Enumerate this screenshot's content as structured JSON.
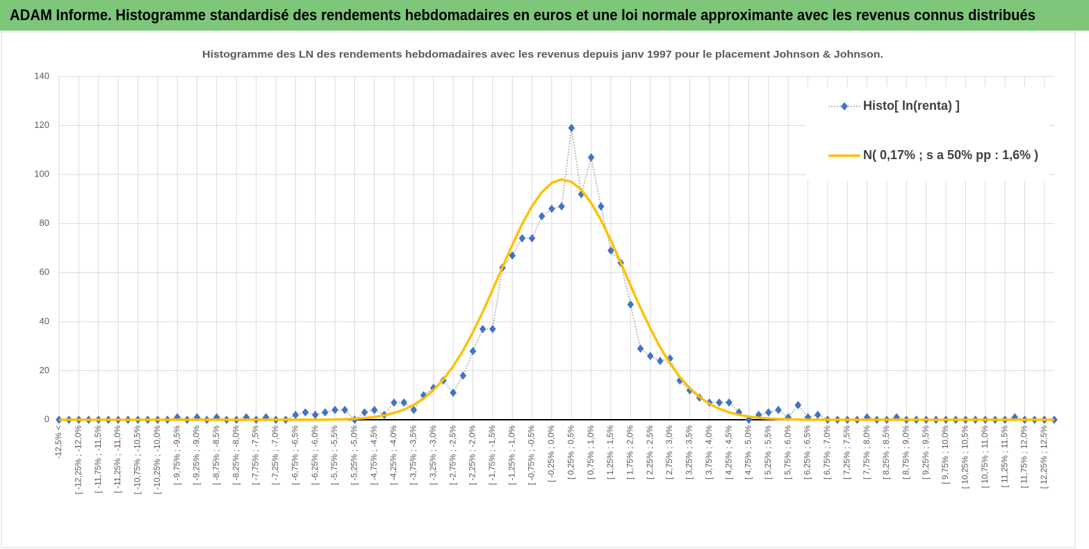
{
  "header": {
    "title": "ADAM Informe. Histogramme standardisé des rendements hebdomadaires en euros et une loi normale approximante avec les revenus connus distribués"
  },
  "chart_data": {
    "type": "line",
    "title": "Histogramme  des LN des rendements hebdomadaires avec les revenus depuis janv 1997 pour le placement Johnson & Johnson.",
    "categories": [
      "-12,5% <",
      null,
      "[ -12,25% ; -12,0%",
      null,
      "[ -11,75% ; -11,5%",
      null,
      "[ -11,25% ; -11,0%",
      null,
      "[ -10,75% ; -10,5%",
      null,
      "[ -10,25% ; -10,0%",
      null,
      "[ -9,75% ; -9,5%",
      null,
      "[ -9,25% ; -9,0%",
      null,
      "[ -8,75% ; -8,5%",
      null,
      "[ -8,25% ; -8,0%",
      null,
      "[ -7,75% ; -7,5%",
      null,
      "[ -7,25% ; -7,0%",
      null,
      "[ -6,75% ; -6,5%",
      null,
      "[ -6,25% ; -6,0%",
      null,
      "[ -5,75% ; -5,5%",
      null,
      "[ -5,25% ; -5,0%",
      null,
      "[ -4,75% ; -4,5%",
      null,
      "[ -4,25% ; -4,0%",
      null,
      "[ -3,75% ; -3,5%",
      null,
      "[ -3,25% ; -3,0%",
      null,
      "[ -2,75% ; -2,5%",
      null,
      "[ -2,25% ; -2,0%",
      null,
      "[ -1,75% ; -1,5%",
      null,
      "[ -1,25% ; -1,0%",
      null,
      "[ -0,75% ; -0,5%",
      null,
      "[ -0,25% ; 0,0%",
      null,
      "[ 0,25% ; 0,5%",
      null,
      "[ 0,75% ; 1,0%",
      null,
      "[ 1,25% ; 1,5%",
      null,
      "[ 1,75% ; 2,0%",
      null,
      "[ 2,25% ; 2,5%",
      null,
      "[ 2,75% ; 3,0%",
      null,
      "[ 3,25% ; 3,5%",
      null,
      "[ 3,75% ; 4,0%",
      null,
      "[ 4,25% ; 4,5%",
      null,
      "[ 4,75% ; 5,0%",
      null,
      "[ 5,25% ; 5,5%",
      null,
      "[ 5,75% ; 6,0%",
      null,
      "[ 6,25% ; 6,5%",
      null,
      "[ 6,75% ; 7,0%",
      null,
      "[ 7,25% ; 7,5%",
      null,
      "[ 7,75% ; 8,0%",
      null,
      "[ 8,25% ; 8,5%",
      null,
      "[ 8,75% ; 9,0%",
      null,
      "[ 9,25% ; 9,5%",
      null,
      "[ 9,75% ; 10,0%",
      null,
      "[ 10,25% ; 10,5%",
      null,
      "[ 10,75% ; 11,0%",
      null,
      "[ 11,25% ; 11,5%",
      null,
      "[ 11,75% ; 12,0%",
      null,
      "[ 12,25% ; 12,5%",
      null
    ],
    "series": [
      {
        "name": "Histo[ ln(renta) ]",
        "color": "#4472c4",
        "marker": "diamond",
        "values": [
          0,
          0,
          0,
          0,
          0,
          0,
          0,
          0,
          0,
          0,
          0,
          0,
          1,
          0,
          1,
          0,
          1,
          0,
          0,
          1,
          0,
          1,
          0,
          0,
          2,
          3,
          2,
          3,
          4,
          4,
          0,
          3,
          4,
          2,
          7,
          7,
          4,
          10,
          13,
          16,
          11,
          18,
          28,
          37,
          37,
          62,
          67,
          74,
          74,
          83,
          86,
          87,
          119,
          92,
          107,
          87,
          69,
          64,
          47,
          29,
          26,
          24,
          25,
          16,
          12,
          9,
          7,
          7,
          7,
          3,
          0,
          2,
          3,
          4,
          1,
          6,
          1,
          2,
          0,
          0,
          0,
          0,
          1,
          0,
          0,
          1,
          0,
          0,
          0,
          0,
          0,
          0,
          0,
          0,
          0,
          0,
          0,
          1,
          0,
          0,
          0,
          0
        ]
      },
      {
        "name": "N( 0,17% ; s a 50% pp : 1,6% )",
        "color": "#ffc000",
        "marker": "none",
        "values": [
          0,
          0,
          0,
          0,
          0,
          0,
          0,
          0,
          0,
          0,
          0,
          0,
          0,
          0,
          0,
          0,
          0,
          0,
          0,
          0,
          0,
          0,
          0,
          0,
          0,
          0,
          0,
          0,
          0.1,
          0.2,
          0.4,
          0.7,
          1.1,
          1.8,
          2.8,
          4.1,
          6.1,
          8.6,
          12.1,
          16.4,
          21.8,
          28.2,
          35.7,
          44.0,
          53.0,
          62.2,
          71.3,
          79.8,
          87.1,
          92.8,
          96.6,
          98.0,
          97.0,
          93.8,
          88.4,
          81.4,
          73.1,
          64.1,
          54.8,
          45.7,
          37.3,
          29.6,
          23.0,
          17.4,
          12.9,
          9.3,
          6.5,
          4.5,
          3.0,
          2.0,
          1.3,
          0.8,
          0.5,
          0.3,
          0.2,
          0.1,
          0,
          0,
          0,
          0,
          0,
          0,
          0,
          0,
          0,
          0,
          0,
          0,
          0,
          0,
          0,
          0,
          0,
          0,
          0,
          0,
          0,
          0,
          0,
          0,
          0,
          0
        ]
      }
    ],
    "ylim": [
      0,
      140
    ],
    "yticks": [
      0,
      20,
      40,
      60,
      80,
      100,
      120,
      140
    ],
    "grid": true,
    "legend": "top-right"
  }
}
